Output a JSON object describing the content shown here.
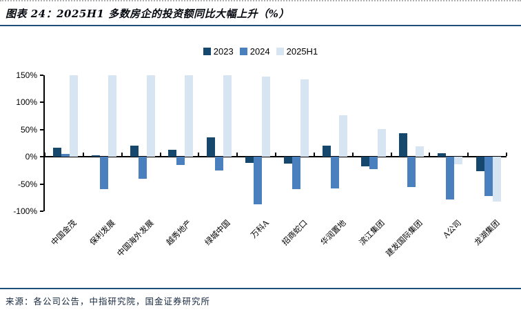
{
  "header": {
    "title": "图表 24：2025H1 多数房企的投资额同比大幅上升（%）"
  },
  "chart_data": {
    "type": "bar",
    "title": "2025H1 多数房企的投资额同比大幅上升（%）",
    "categories": [
      "中国金茂",
      "保利发展",
      "中国海外发展",
      "越秀地产",
      "绿城中国",
      "万科A",
      "招商蛇口",
      "华润置地",
      "滨江集团",
      "建发国际集团",
      "A公司",
      "龙湖集团"
    ],
    "series": [
      {
        "name": "2023",
        "color": "#16476D",
        "values": [
          17,
          3,
          21,
          13,
          36,
          -11,
          -12,
          21,
          -18,
          43,
          7,
          -26
        ]
      },
      {
        "name": "2024",
        "color": "#4A80BD",
        "values": [
          5,
          -60,
          -41,
          -15,
          -25,
          -87,
          -59,
          -58,
          -23,
          -55,
          -78,
          -72
        ]
      },
      {
        "name": "2025H1",
        "color": "#D7E4F2",
        "values": [
          150,
          150,
          150,
          150,
          150,
          148,
          143,
          76,
          51,
          19,
          -14,
          -82
        ]
      }
    ],
    "note": "2025H1 bars for the first five companies reach the 150% axis maximum (clipped at top of plot)",
    "xlabel": "",
    "ylabel": "",
    "ylim": [
      -100,
      150
    ],
    "yticks": [
      {
        "label": "150%",
        "value": 150
      },
      {
        "label": "100%",
        "value": 100
      },
      {
        "label": "50%",
        "value": 50
      },
      {
        "label": "0%",
        "value": 0
      },
      {
        "label": "-50%",
        "value": -50
      },
      {
        "label": "-100%",
        "value": -100
      }
    ],
    "grid": false,
    "legend_position": "top-center"
  },
  "source": {
    "text": "来源：各公司公告，中指研究院，国金证券研究所"
  },
  "colors": {
    "accent_rule": "#1F4E79",
    "axis": "#000000"
  }
}
